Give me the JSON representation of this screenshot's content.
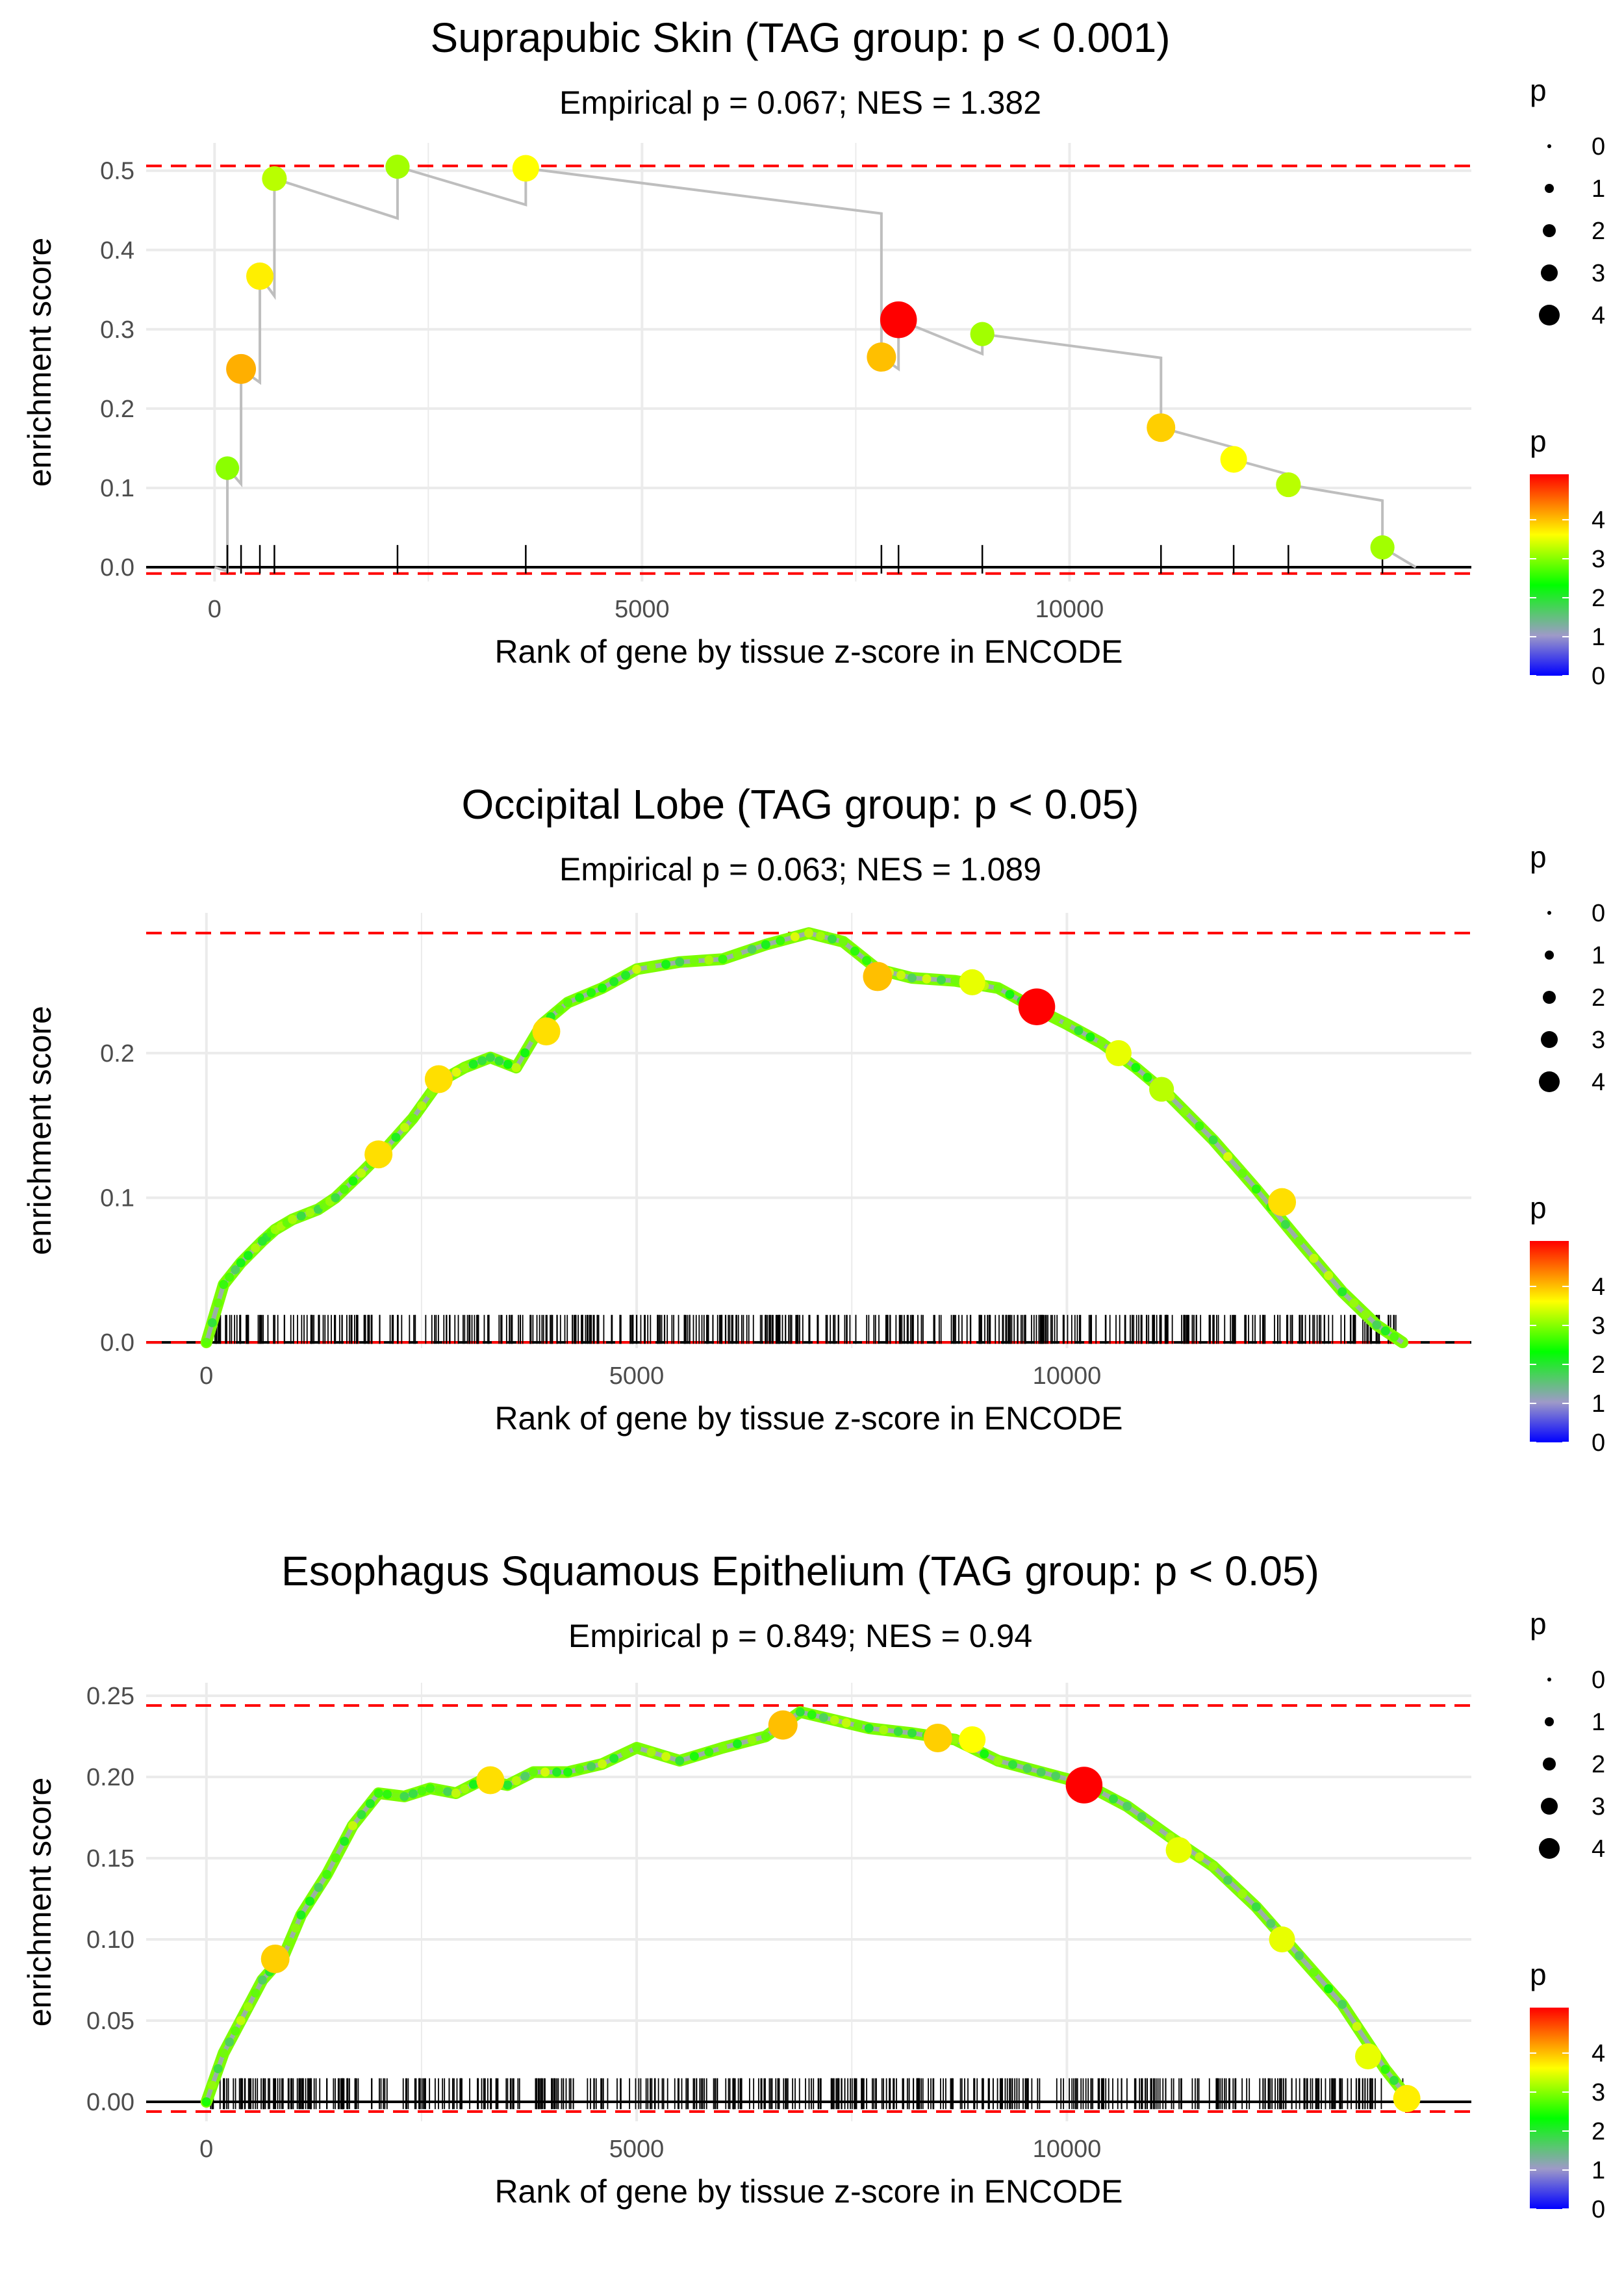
{
  "chart_data": [
    {
      "type": "line",
      "title": "Suprapubic Skin (TAG group: p < 0.001)",
      "subtitle": "Empirical p = 0.067; NES = 1.382",
      "xlabel": "Rank of gene by tissue z-score in ENCODE",
      "ylabel": "enrichment score",
      "xlim": [
        -800,
        14700
      ],
      "ylim": [
        -0.018,
        0.535
      ],
      "x_ticks": [
        0,
        5000,
        10000
      ],
      "x_tick_labels": [
        "0",
        "5000",
        "10000"
      ],
      "y_ticks": [
        0.0,
        0.1,
        0.2,
        0.3,
        0.4,
        0.5
      ],
      "y_tick_labels": [
        "0.0",
        "0.1",
        "0.2",
        "0.3",
        "0.4",
        "0.5"
      ],
      "threshold_lines": [
        0.506,
        -0.008
      ],
      "points": [
        {
          "x": 150,
          "y": 0.125,
          "p": 2.8
        },
        {
          "x": 310,
          "y": 0.25,
          "p": 3.8
        },
        {
          "x": 530,
          "y": 0.367,
          "p": 3.4
        },
        {
          "x": 700,
          "y": 0.49,
          "p": 3.0
        },
        {
          "x": 2140,
          "y": 0.505,
          "p": 2.9
        },
        {
          "x": 3640,
          "y": 0.503,
          "p": 3.3
        },
        {
          "x": 7800,
          "y": 0.265,
          "p": 3.7
        },
        {
          "x": 8000,
          "y": 0.312,
          "p": 4.9
        },
        {
          "x": 8980,
          "y": 0.294,
          "p": 2.9
        },
        {
          "x": 11070,
          "y": 0.176,
          "p": 3.6
        },
        {
          "x": 11920,
          "y": 0.136,
          "p": 3.3
        },
        {
          "x": 12560,
          "y": 0.104,
          "p": 3.0
        },
        {
          "x": 13660,
          "y": 0.025,
          "p": 2.9
        }
      ]
    },
    {
      "type": "line",
      "title": "Occipital Lobe (TAG group: p < 0.05)",
      "subtitle": "Empirical p = 0.063; NES = 1.089",
      "xlabel": "Rank of gene by tissue z-score in ENCODE",
      "ylabel": "enrichment score",
      "xlim": [
        -700,
        14700
      ],
      "ylim": [
        -0.004,
        0.297
      ],
      "x_ticks": [
        0,
        5000,
        10000
      ],
      "x_tick_labels": [
        "0",
        "5000",
        "10000"
      ],
      "y_ticks": [
        0.0,
        0.1,
        0.2
      ],
      "y_tick_labels": [
        "0.0",
        "0.1",
        "0.2"
      ],
      "threshold_lines": [
        0.283,
        0.0
      ],
      "curve": [
        [
          0,
          0.0
        ],
        [
          200,
          0.04
        ],
        [
          400,
          0.055
        ],
        [
          650,
          0.07
        ],
        [
          800,
          0.078
        ],
        [
          1000,
          0.085
        ],
        [
          1300,
          0.092
        ],
        [
          1500,
          0.1
        ],
        [
          1800,
          0.117
        ],
        [
          2100,
          0.135
        ],
        [
          2400,
          0.155
        ],
        [
          2700,
          0.18
        ],
        [
          3000,
          0.19
        ],
        [
          3300,
          0.197
        ],
        [
          3600,
          0.19
        ],
        [
          3900,
          0.22
        ],
        [
          4200,
          0.235
        ],
        [
          4600,
          0.245
        ],
        [
          5000,
          0.258
        ],
        [
          5500,
          0.263
        ],
        [
          6000,
          0.265
        ],
        [
          6500,
          0.275
        ],
        [
          7000,
          0.283
        ],
        [
          7400,
          0.277
        ],
        [
          7800,
          0.258
        ],
        [
          8200,
          0.252
        ],
        [
          8700,
          0.25
        ],
        [
          9200,
          0.245
        ],
        [
          9600,
          0.232
        ],
        [
          10000,
          0.22
        ],
        [
          10400,
          0.207
        ],
        [
          10800,
          0.19
        ],
        [
          11200,
          0.17
        ],
        [
          11700,
          0.14
        ],
        [
          12200,
          0.106
        ],
        [
          12700,
          0.07
        ],
        [
          13200,
          0.035
        ],
        [
          13600,
          0.012
        ],
        [
          13900,
          0.0
        ]
      ],
      "points": [
        {
          "x": 2000,
          "y": 0.13,
          "p": 3.5
        },
        {
          "x": 2700,
          "y": 0.182,
          "p": 3.5
        },
        {
          "x": 3950,
          "y": 0.215,
          "p": 3.5
        },
        {
          "x": 7800,
          "y": 0.253,
          "p": 3.7
        },
        {
          "x": 8900,
          "y": 0.249,
          "p": 3.2
        },
        {
          "x": 9650,
          "y": 0.232,
          "p": 4.9
        },
        {
          "x": 10600,
          "y": 0.2,
          "p": 3.2
        },
        {
          "x": 11100,
          "y": 0.175,
          "p": 3.0
        },
        {
          "x": 12500,
          "y": 0.097,
          "p": 3.5
        }
      ]
    },
    {
      "type": "line",
      "title": "Esophagus Squamous Epithelium (TAG group: p < 0.05)",
      "subtitle": "Empirical p = 0.849; NES = 0.94",
      "xlabel": "Rank of gene by tissue z-score in ENCODE",
      "ylabel": "enrichment score",
      "xlim": [
        -700,
        14700
      ],
      "ylim": [
        -0.012,
        0.258
      ],
      "x_ticks": [
        0,
        5000,
        10000
      ],
      "x_tick_labels": [
        "0",
        "5000",
        "10000"
      ],
      "y_ticks": [
        0.0,
        0.05,
        0.1,
        0.15,
        0.2,
        0.25
      ],
      "y_tick_labels": [
        "0.00",
        "0.05",
        "0.10",
        "0.15",
        "0.20",
        "0.25"
      ],
      "threshold_lines": [
        0.244,
        -0.006
      ],
      "curve": [
        [
          0,
          0.0
        ],
        [
          200,
          0.03
        ],
        [
          400,
          0.05
        ],
        [
          650,
          0.075
        ],
        [
          900,
          0.09
        ],
        [
          1100,
          0.115
        ],
        [
          1400,
          0.14
        ],
        [
          1700,
          0.17
        ],
        [
          2000,
          0.19
        ],
        [
          2300,
          0.188
        ],
        [
          2600,
          0.193
        ],
        [
          2900,
          0.19
        ],
        [
          3200,
          0.198
        ],
        [
          3500,
          0.195
        ],
        [
          3800,
          0.203
        ],
        [
          4200,
          0.203
        ],
        [
          4600,
          0.208
        ],
        [
          5000,
          0.218
        ],
        [
          5500,
          0.21
        ],
        [
          6000,
          0.218
        ],
        [
          6500,
          0.225
        ],
        [
          6900,
          0.24
        ],
        [
          7300,
          0.235
        ],
        [
          7700,
          0.23
        ],
        [
          8200,
          0.227
        ],
        [
          8700,
          0.223
        ],
        [
          9200,
          0.21
        ],
        [
          9700,
          0.203
        ],
        [
          10200,
          0.196
        ],
        [
          10700,
          0.182
        ],
        [
          11200,
          0.163
        ],
        [
          11700,
          0.145
        ],
        [
          12200,
          0.12
        ],
        [
          12700,
          0.09
        ],
        [
          13200,
          0.06
        ],
        [
          13700,
          0.02
        ],
        [
          14000,
          0.0
        ]
      ],
      "points": [
        {
          "x": 800,
          "y": 0.088,
          "p": 3.6
        },
        {
          "x": 3300,
          "y": 0.198,
          "p": 3.5
        },
        {
          "x": 6700,
          "y": 0.232,
          "p": 3.7
        },
        {
          "x": 8500,
          "y": 0.224,
          "p": 3.6
        },
        {
          "x": 8900,
          "y": 0.223,
          "p": 3.3
        },
        {
          "x": 10200,
          "y": 0.195,
          "p": 4.9
        },
        {
          "x": 11300,
          "y": 0.155,
          "p": 3.2
        },
        {
          "x": 12500,
          "y": 0.1,
          "p": 3.2
        },
        {
          "x": 13500,
          "y": 0.028,
          "p": 3.2
        },
        {
          "x": 13950,
          "y": 0.002,
          "p": 3.4
        }
      ]
    }
  ],
  "legends": {
    "size_title": "p",
    "size_labels": [
      "0",
      "1",
      "2",
      "3",
      "4"
    ],
    "color_title": "p",
    "color_labels": [
      "4",
      "3",
      "2",
      "1",
      "0"
    ],
    "gradient_colors": [
      "#0000ff",
      "#9e9ac8",
      "#00ff00",
      "#ffff00",
      "#ff0000"
    ]
  },
  "colors": {
    "threshold": "#ff0000",
    "running_line": "#bebebe",
    "grid": "#ebebeb"
  }
}
